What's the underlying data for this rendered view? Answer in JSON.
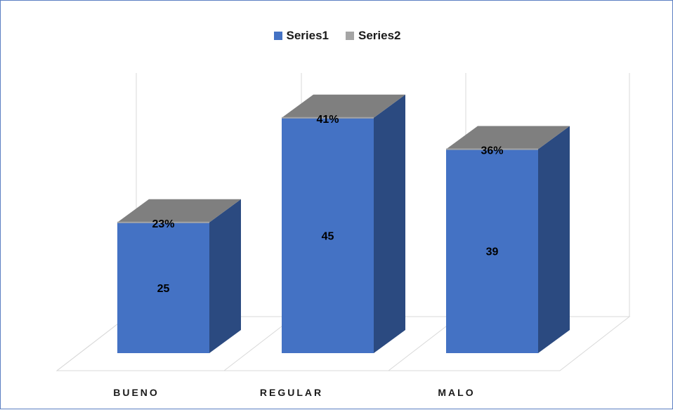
{
  "colors": {
    "series1_front": "#4472c4",
    "series1_side": "#2b4a80",
    "series2_top": "#7f7f7f",
    "series2_legend": "#a5a5a5",
    "grid": "#d9d9d9",
    "border": "#5b7fc2"
  },
  "chart_data": {
    "type": "bar",
    "categories": [
      "BUENO",
      "REGULAR",
      "MALO"
    ],
    "series": [
      {
        "name": "Series1",
        "values": [
          25,
          45,
          39
        ]
      },
      {
        "name": "Series2",
        "values": [
          "23%",
          "41%",
          "36%"
        ]
      }
    ],
    "grid": true,
    "legend": "top-center",
    "ylim": [
      0,
      60
    ]
  }
}
